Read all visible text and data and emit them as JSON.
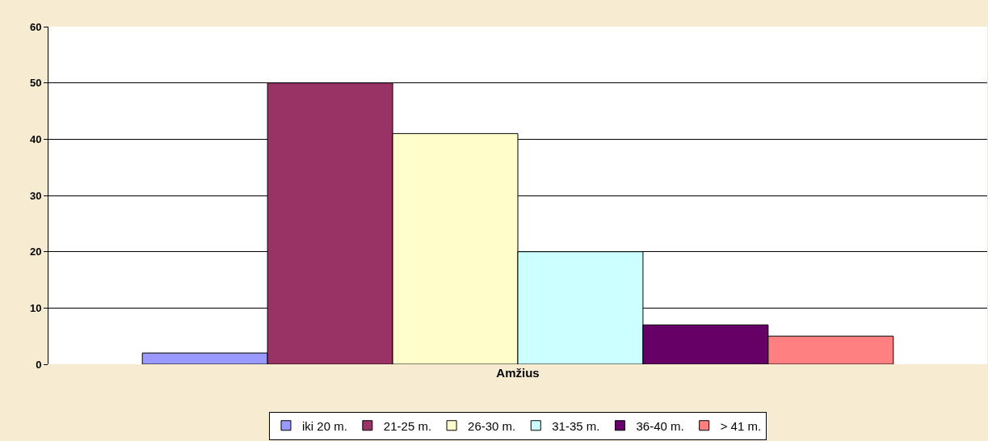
{
  "chart_data": {
    "type": "bar",
    "categories": [
      "Amžius"
    ],
    "series": [
      {
        "name": "iki 20 m.",
        "color": "#9999ff",
        "values": [
          2
        ]
      },
      {
        "name": "21-25 m.",
        "color": "#993366",
        "values": [
          50
        ]
      },
      {
        "name": "26-30 m.",
        "color": "#ffffcc",
        "values": [
          41
        ]
      },
      {
        "name": "31-35 m.",
        "color": "#ccffff",
        "values": [
          20
        ]
      },
      {
        "name": "36-40 m.",
        "color": "#660066",
        "values": [
          7
        ]
      },
      {
        "name": "> 41 m.",
        "color": "#ff8080",
        "values": [
          5
        ]
      }
    ],
    "ylim": [
      0,
      60
    ],
    "yticks": [
      0,
      10,
      20,
      30,
      40,
      50,
      60
    ],
    "grid": "y",
    "legend": "bottom"
  }
}
